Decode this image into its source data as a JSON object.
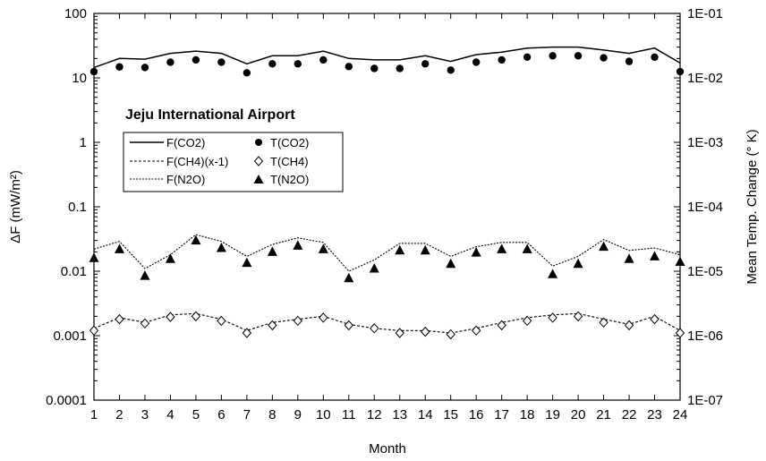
{
  "chart_data": {
    "type": "line",
    "annotation": "Jeju International Airport",
    "xlabel": "Month",
    "ylabel": "ΔF (mW/m²)",
    "ylabel_right": "Mean Temp. Change (° K)",
    "x": [
      1,
      2,
      3,
      4,
      5,
      6,
      7,
      8,
      9,
      10,
      11,
      12,
      13,
      14,
      15,
      16,
      17,
      18,
      19,
      20,
      21,
      22,
      23,
      24
    ],
    "x_ticks": [
      "1",
      "2",
      "3",
      "4",
      "5",
      "6",
      "7",
      "8",
      "9",
      "10",
      "11",
      "12",
      "13",
      "14",
      "15",
      "16",
      "17",
      "18",
      "19",
      "20",
      "21",
      "22",
      "23",
      "24"
    ],
    "xlim": [
      1,
      24
    ],
    "y_scale": "log",
    "ylim": [
      0.0001,
      100
    ],
    "y_ticks": [
      "0.0001",
      "0.001",
      "0.01",
      "0.1",
      "1",
      "10",
      "100"
    ],
    "y2_scale": "log",
    "y2lim": [
      1e-07,
      0.1
    ],
    "y2_ticks": [
      "1E-07",
      "1E-06",
      "1E-05",
      "1E-04",
      "1E-03",
      "1E-02",
      "1E-01"
    ],
    "series": [
      {
        "name": "F(CO2)",
        "axis": "left",
        "style": "solid",
        "values": [
          14.5,
          20,
          19.5,
          24,
          26,
          24,
          16.5,
          22,
          22,
          26,
          20,
          19,
          19,
          22,
          18,
          23,
          25,
          29,
          30,
          30,
          27,
          24,
          29,
          17
        ]
      },
      {
        "name": "F(CH4)(x-1)",
        "axis": "left",
        "style": "dashed",
        "values": [
          0.0013,
          0.0019,
          0.0016,
          0.0021,
          0.0022,
          0.0018,
          0.0012,
          0.0016,
          0.0018,
          0.002,
          0.0015,
          0.0013,
          0.0012,
          0.0012,
          0.0011,
          0.0013,
          0.0016,
          0.0019,
          0.0021,
          0.0022,
          0.0018,
          0.0015,
          0.002,
          0.0012
        ]
      },
      {
        "name": "F(N2O)",
        "axis": "left",
        "style": "dotted",
        "values": [
          0.022,
          0.029,
          0.011,
          0.018,
          0.037,
          0.029,
          0.017,
          0.026,
          0.033,
          0.028,
          0.01,
          0.015,
          0.027,
          0.027,
          0.017,
          0.024,
          0.028,
          0.028,
          0.012,
          0.017,
          0.031,
          0.021,
          0.023,
          0.018
        ]
      },
      {
        "name": "T(CO2)",
        "axis": "right",
        "marker": "filled-circle",
        "values": [
          0.0125,
          0.0148,
          0.0145,
          0.0175,
          0.019,
          0.0175,
          0.012,
          0.0165,
          0.0165,
          0.019,
          0.015,
          0.014,
          0.014,
          0.0165,
          0.0132,
          0.0175,
          0.019,
          0.021,
          0.022,
          0.022,
          0.0205,
          0.018,
          0.021,
          0.0125
        ]
      },
      {
        "name": "T(CH4)",
        "axis": "right",
        "marker": "open-diamond",
        "values": [
          1.2e-06,
          1.8e-06,
          1.55e-06,
          1.95e-06,
          2e-06,
          1.7e-06,
          1.1e-06,
          1.45e-06,
          1.7e-06,
          1.9e-06,
          1.45e-06,
          1.3e-06,
          1.1e-06,
          1.15e-06,
          1.05e-06,
          1.2e-06,
          1.45e-06,
          1.7e-06,
          1.9e-06,
          2e-06,
          1.6e-06,
          1.45e-06,
          1.8e-06,
          1.1e-06
        ]
      },
      {
        "name": "T(N2O)",
        "axis": "right",
        "marker": "filled-triangle",
        "values": [
          1.6e-05,
          2.2e-05,
          8.5e-06,
          1.55e-05,
          3e-05,
          2.3e-05,
          1.35e-05,
          2e-05,
          2.5e-05,
          2.2e-05,
          7.8e-06,
          1.1e-05,
          2.1e-05,
          2.1e-05,
          1.3e-05,
          1.95e-05,
          2.2e-05,
          2.2e-05,
          9e-06,
          1.3e-05,
          2.4e-05,
          1.55e-05,
          1.7e-05,
          1.4e-05
        ]
      }
    ],
    "legend_position": "upper-left",
    "grid": false
  }
}
